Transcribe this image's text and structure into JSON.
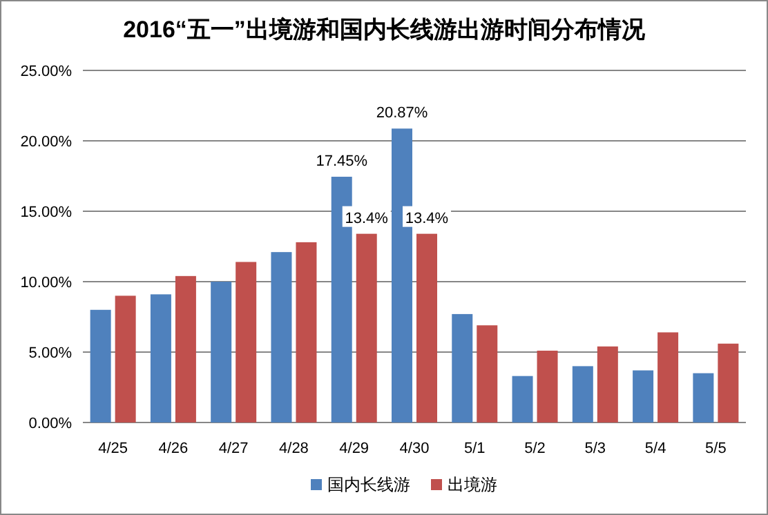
{
  "chart_data": {
    "type": "bar",
    "title": "2016“五一”出境游和国内长线游出游时间分布情况",
    "categories": [
      "4/25",
      "4/26",
      "4/27",
      "4/28",
      "4/29",
      "4/30",
      "5/1",
      "5/2",
      "5/3",
      "5/4",
      "5/5"
    ],
    "series": [
      {
        "name": "国内长线游",
        "color": "#4f81bd",
        "values": [
          8.0,
          9.1,
          10.0,
          12.1,
          17.45,
          20.87,
          7.7,
          3.3,
          4.0,
          3.7,
          3.5
        ],
        "value_labels": [
          null,
          null,
          null,
          null,
          "17.45%",
          "20.87%",
          null,
          null,
          null,
          null,
          null
        ]
      },
      {
        "name": "出境游",
        "color": "#c0504d",
        "values": [
          9.0,
          10.4,
          11.4,
          12.8,
          13.4,
          13.4,
          6.9,
          5.1,
          5.4,
          6.4,
          5.6
        ],
        "value_labels": [
          null,
          null,
          null,
          null,
          "13.4%",
          "13.4%",
          null,
          null,
          null,
          null,
          null
        ]
      }
    ],
    "ylim": [
      0,
      25
    ],
    "yticks": [
      {
        "value": 0,
        "label": "0.00%"
      },
      {
        "value": 5,
        "label": "5.00%"
      },
      {
        "value": 10,
        "label": "10.00%"
      },
      {
        "value": 15,
        "label": "15.00%"
      },
      {
        "value": 20,
        "label": "20.00%"
      },
      {
        "value": 25,
        "label": "25.00%"
      }
    ],
    "grid": "y",
    "legend": "bottom"
  }
}
